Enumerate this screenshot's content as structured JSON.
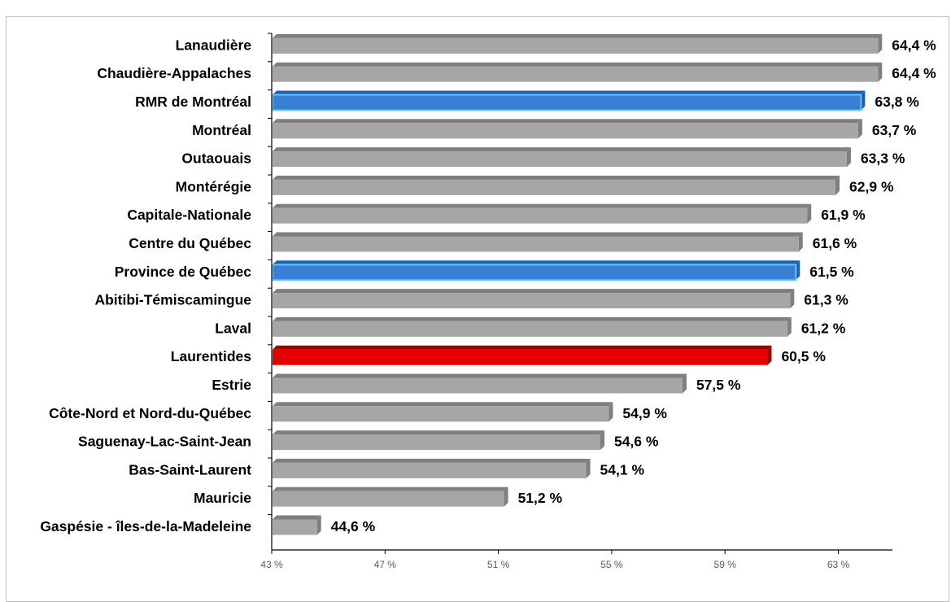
{
  "chart_data": {
    "type": "bar",
    "orientation": "horizontal",
    "title": "",
    "xlabel": "",
    "ylabel": "",
    "categories": [
      "Lanaudière",
      "Chaudière-Appalaches",
      "RMR de Montréal",
      "Montréal",
      "Outaouais",
      "Montérégie",
      "Capitale-Nationale",
      "Centre du Québec",
      "Province de Québec",
      "Abitibi-Témiscamingue",
      "Laval",
      "Laurentides",
      "Estrie",
      "Côte-Nord et Nord-du-Québec",
      "Saguenay-Lac-Saint-Jean",
      "Bas-Saint-Laurent",
      "Mauricie",
      "Gaspésie - îles-de-la-Madeleine"
    ],
    "values": [
      64.4,
      64.4,
      63.8,
      63.7,
      63.3,
      62.9,
      61.9,
      61.6,
      61.5,
      61.3,
      61.2,
      60.5,
      57.5,
      54.9,
      54.6,
      54.1,
      51.2,
      44.6
    ],
    "value_labels": [
      "64,4 %",
      "64,4 %",
      "63,8 %",
      "63,7 %",
      "63,3 %",
      "62,9 %",
      "61,9 %",
      "61,6 %",
      "61,5 %",
      "61,3 %",
      "61,2 %",
      "60,5 %",
      "57,5 %",
      "54,9 %",
      "54,6 %",
      "54,1 %",
      "51,2 %",
      "44,6 %"
    ],
    "highlight": [
      "grey",
      "grey",
      "blue",
      "grey",
      "grey",
      "grey",
      "grey",
      "grey",
      "blue",
      "grey",
      "grey",
      "red",
      "grey",
      "grey",
      "grey",
      "grey",
      "grey",
      "grey"
    ],
    "colors": {
      "grey": "#a6a6a6",
      "grey_side": "#7f7f7f",
      "blue": "#3a7fd6",
      "blue_side": "#1f5fb0",
      "blue_edge": "#5ec8f0",
      "red": "#e50000",
      "red_side": "#a00000"
    },
    "xlim": [
      43,
      66
    ],
    "xticks": [
      43,
      47,
      51,
      55,
      59,
      63
    ],
    "xtick_labels": [
      "43 %",
      "47 %",
      "51 %",
      "55 %",
      "59 %",
      "63 %"
    ],
    "grid": false,
    "legend": "none"
  }
}
